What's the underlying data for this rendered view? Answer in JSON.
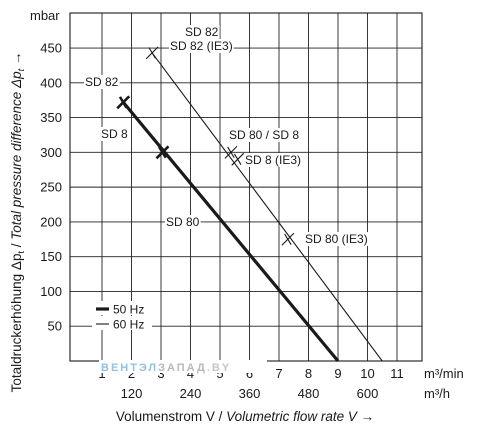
{
  "chart_data": {
    "type": "line",
    "y_unit": "mbar",
    "y_axis_label_parts": [
      "Totaldruckerhöhung Δp",
      "t",
      " / ",
      "Total pressure difference Δp",
      "t",
      " →"
    ],
    "x_axis_label_parts": [
      "Volumenstrom V / ",
      "Volumetric flow rate V",
      " →"
    ],
    "y_ticks": [
      50,
      100,
      150,
      200,
      250,
      300,
      350,
      400,
      450
    ],
    "y_range": [
      0,
      500
    ],
    "x_ticks_m3min": [
      "1",
      "2",
      "3",
      "4",
      "5",
      "6",
      "7",
      "8",
      "9",
      "10",
      "11"
    ],
    "x_unit_m3min": "m³/min",
    "x_ticks_m3h": [
      {
        "label": "120",
        "at_m3min": 2
      },
      {
        "label": "240",
        "at_m3min": 4
      },
      {
        "label": "360",
        "at_m3min": 6
      },
      {
        "label": "480",
        "at_m3min": 8
      },
      {
        "label": "600",
        "at_m3min": 10
      }
    ],
    "x_unit_m3h": "m³/h",
    "x_range": [
      0,
      12
    ],
    "grid": true,
    "series": [
      {
        "name": "50 Hz",
        "style": "thick",
        "color": "#1a1a1a",
        "x": [
          1.72,
          9.0
        ],
        "y": [
          372,
          0
        ]
      },
      {
        "name": "60 Hz",
        "style": "thin",
        "color": "#1a1a1a",
        "x": [
          2.7,
          10.5
        ],
        "y": [
          443,
          0
        ]
      }
    ],
    "markers": [
      {
        "series": "50 Hz",
        "x": 1.72,
        "y": 372
      },
      {
        "series": "50 Hz",
        "x": 3.05,
        "y": 300
      },
      {
        "series": "60 Hz",
        "x": 2.7,
        "y": 443
      },
      {
        "series": "60 Hz",
        "x": 5.37,
        "y": 300
      },
      {
        "series": "60 Hz",
        "x": 5.6,
        "y": 290
      },
      {
        "series": "60 Hz",
        "x": 7.3,
        "y": 175
      }
    ],
    "annotations": [
      {
        "text": "SD 82",
        "x": 3.5,
        "y": 475
      },
      {
        "text": "SD 82 (IE3)",
        "x": 3.5,
        "y": 455
      },
      {
        "text": "SD 82",
        "x": 1.6,
        "y": 400
      },
      {
        "text": "SD 8",
        "x": 1.6,
        "y": 317
      },
      {
        "text": "SD 80 / SD 8",
        "x": 6.4,
        "y": 317
      },
      {
        "text": "SD 8 (IE3)",
        "x": 6.5,
        "y": 285
      },
      {
        "text": "SD 80",
        "x": 4.0,
        "y": 200
      },
      {
        "text": "SD 80 (IE3)",
        "x": 8.5,
        "y": 175
      }
    ],
    "legend": {
      "placement": "bottom-left",
      "items": [
        {
          "label": "50 Hz",
          "style": "thick"
        },
        {
          "label": "60 Hz",
          "style": "thin"
        }
      ]
    },
    "watermark": {
      "parts": [
        {
          "text": "ВЕНТЭЛ",
          "color": "#8fc3e6"
        },
        {
          "text": "ЗАПАД",
          "color": "#b9b9b9"
        },
        {
          "text": ".BY",
          "color": "#c6c6c6"
        }
      ]
    }
  }
}
